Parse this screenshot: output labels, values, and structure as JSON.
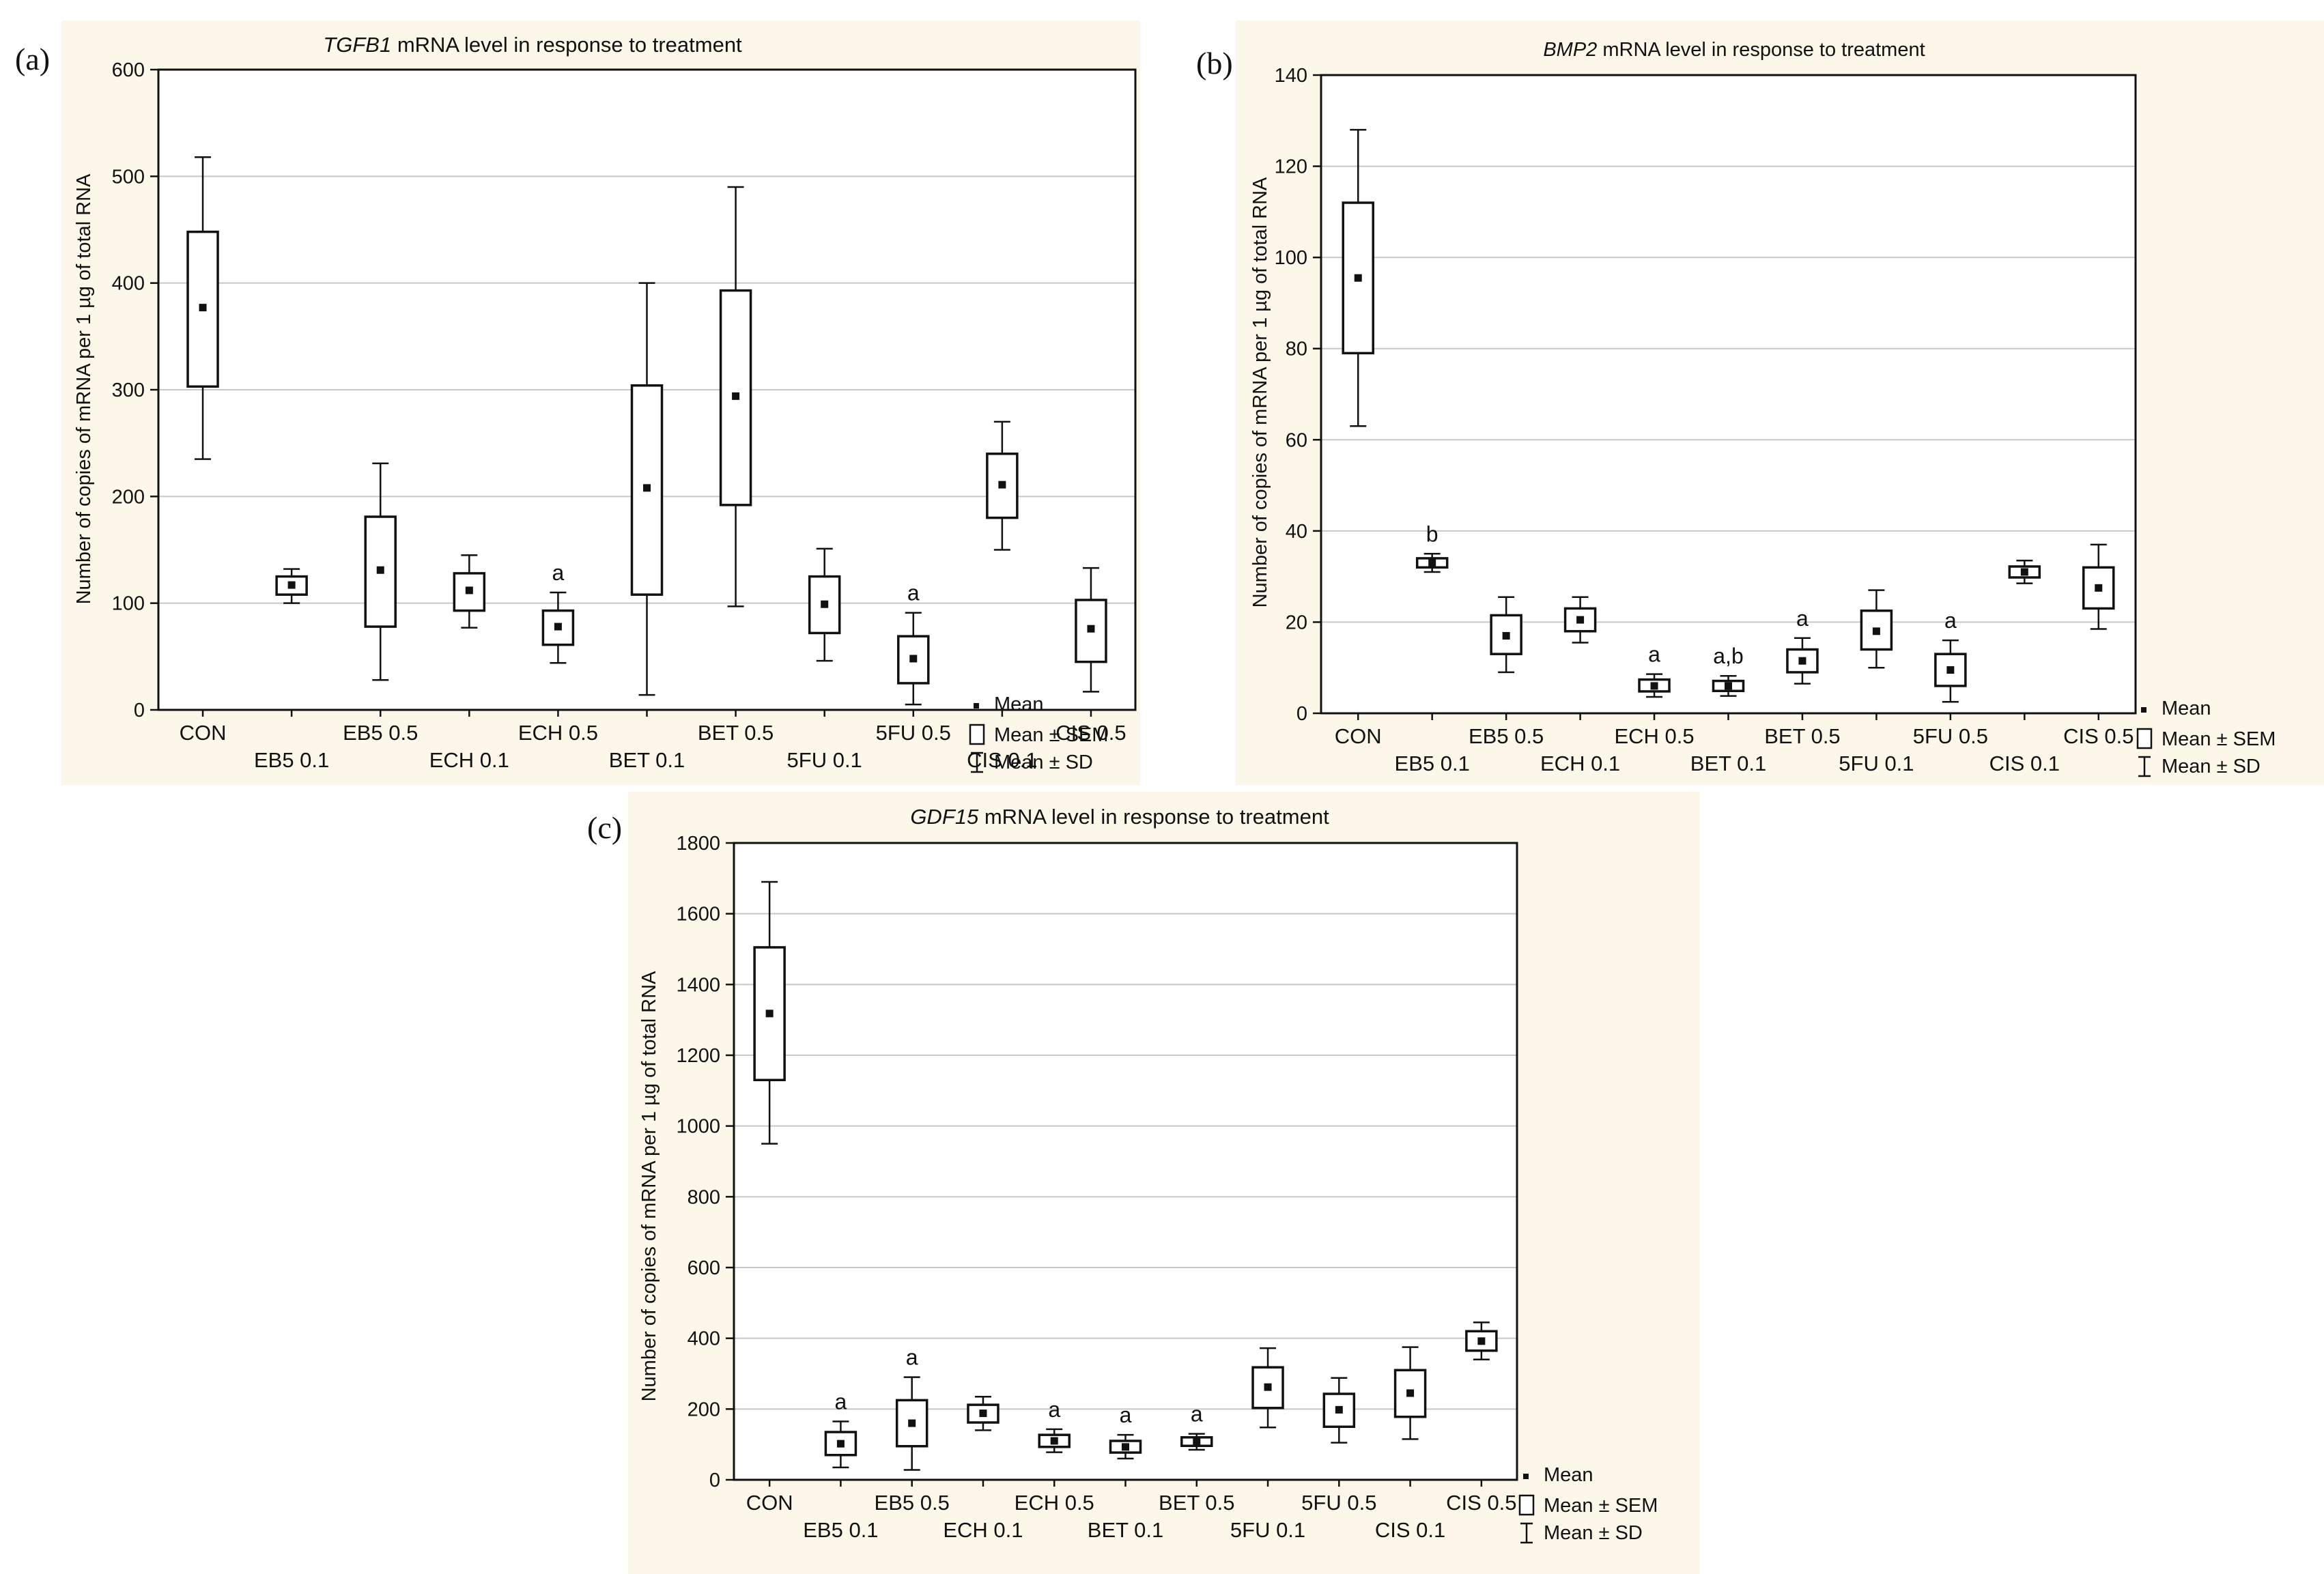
{
  "colors": {
    "panel_bg": "#fdf7ea",
    "plot_bg": "#ffffff",
    "grid": "#c8c8c8",
    "ink": "#111111"
  },
  "legend": {
    "mean": "Mean",
    "sem": "Mean ± SEM",
    "sd": "Mean ± SD"
  },
  "chart_data": [
    {
      "panel_label": "(a)",
      "type": "box",
      "title_italic": "TGFB1",
      "title_rest": " mRNA level in response to treatment",
      "ylabel": "Number of copies of mRNA per 1 µg of total RNA",
      "ylim": [
        0,
        600
      ],
      "yticks": [
        0,
        100,
        200,
        300,
        400,
        500,
        600
      ],
      "categories": [
        "CON",
        "EB5 0.1",
        "EB5 0.5",
        "ECH 0.1",
        "ECH 0.5",
        "BET 0.1",
        "BET 0.5",
        "5FU 0.1",
        "5FU 0.5",
        "CIS 0.1",
        "CIS 0.5"
      ],
      "series": [
        {
          "name": "CON",
          "mean": 377,
          "sem": [
            303,
            448
          ],
          "sd": [
            235,
            518
          ],
          "annotation": ""
        },
        {
          "name": "EB5 0.1",
          "mean": 117,
          "sem": [
            108,
            125
          ],
          "sd": [
            100,
            132
          ],
          "annotation": ""
        },
        {
          "name": "EB5 0.5",
          "mean": 131,
          "sem": [
            78,
            181
          ],
          "sd": [
            28,
            231
          ],
          "annotation": ""
        },
        {
          "name": "ECH 0.1",
          "mean": 112,
          "sem": [
            93,
            128
          ],
          "sd": [
            77,
            145
          ],
          "annotation": ""
        },
        {
          "name": "ECH 0.5",
          "mean": 78,
          "sem": [
            61,
            93
          ],
          "sd": [
            44,
            110
          ],
          "annotation": "a"
        },
        {
          "name": "BET 0.1",
          "mean": 208,
          "sem": [
            108,
            304
          ],
          "sd": [
            14,
            400
          ],
          "annotation": ""
        },
        {
          "name": "BET 0.5",
          "mean": 294,
          "sem": [
            192,
            393
          ],
          "sd": [
            97,
            490
          ],
          "annotation": ""
        },
        {
          "name": "5FU 0.1",
          "mean": 99,
          "sem": [
            72,
            125
          ],
          "sd": [
            46,
            151
          ],
          "annotation": ""
        },
        {
          "name": "5FU 0.5",
          "mean": 48,
          "sem": [
            25,
            69
          ],
          "sd": [
            5,
            91
          ],
          "annotation": "a"
        },
        {
          "name": "CIS 0.1",
          "mean": 211,
          "sem": [
            180,
            240
          ],
          "sd": [
            150,
            270
          ],
          "annotation": ""
        },
        {
          "name": "CIS 0.5",
          "mean": 76,
          "sem": [
            45,
            103
          ],
          "sd": [
            17,
            133
          ],
          "annotation": ""
        }
      ]
    },
    {
      "panel_label": "(b)",
      "type": "box",
      "title_italic": "BMP2",
      "title_rest": " mRNA level in response to treatment",
      "ylabel": "Number of copies of mRNA per 1 µg of total RNA",
      "ylim": [
        0,
        140
      ],
      "yticks": [
        0,
        20,
        40,
        60,
        80,
        100,
        120,
        140
      ],
      "categories": [
        "CON",
        "EB5 0.1",
        "EB5 0.5",
        "ECH 0.1",
        "ECH 0.5",
        "BET 0.1",
        "BET 0.5",
        "5FU 0.1",
        "5FU 0.5",
        "CIS 0.1",
        "CIS 0.5"
      ],
      "series": [
        {
          "name": "CON",
          "mean": 95.5,
          "sem": [
            79,
            112
          ],
          "sd": [
            63,
            128
          ],
          "annotation": ""
        },
        {
          "name": "EB5 0.1",
          "mean": 33,
          "sem": [
            32,
            34
          ],
          "sd": [
            31,
            35
          ],
          "annotation": "b"
        },
        {
          "name": "EB5 0.5",
          "mean": 17,
          "sem": [
            13,
            21.5
          ],
          "sd": [
            9,
            25.5
          ],
          "annotation": ""
        },
        {
          "name": "ECH 0.1",
          "mean": 20.5,
          "sem": [
            18,
            23
          ],
          "sd": [
            15.5,
            25.5
          ],
          "annotation": ""
        },
        {
          "name": "ECH 0.5",
          "mean": 6,
          "sem": [
            4.8,
            7.4
          ],
          "sd": [
            3.6,
            8.6
          ],
          "annotation": "a"
        },
        {
          "name": "BET 0.1",
          "mean": 6,
          "sem": [
            4.9,
            7.1
          ],
          "sd": [
            3.8,
            8.2
          ],
          "annotation": "a,b"
        },
        {
          "name": "BET 0.5",
          "mean": 11.5,
          "sem": [
            9,
            14
          ],
          "sd": [
            6.5,
            16.5
          ],
          "annotation": "a"
        },
        {
          "name": "5FU 0.1",
          "mean": 18,
          "sem": [
            14,
            22.5
          ],
          "sd": [
            10,
            27
          ],
          "annotation": ""
        },
        {
          "name": "5FU 0.5",
          "mean": 9.5,
          "sem": [
            6,
            13
          ],
          "sd": [
            2.5,
            16
          ],
          "annotation": "a"
        },
        {
          "name": "CIS 0.1",
          "mean": 31,
          "sem": [
            29.8,
            32.2
          ],
          "sd": [
            28.5,
            33.5
          ],
          "annotation": ""
        },
        {
          "name": "CIS 0.5",
          "mean": 27.5,
          "sem": [
            23,
            32
          ],
          "sd": [
            18.5,
            37
          ],
          "annotation": ""
        }
      ]
    },
    {
      "panel_label": "(c)",
      "type": "box",
      "title_italic": "GDF15",
      "title_rest": " mRNA level in response to treatment",
      "ylabel": "Number of copies of mRNA per 1 µg of total RNA",
      "ylim": [
        0,
        1800
      ],
      "yticks": [
        0,
        200,
        400,
        600,
        800,
        1000,
        1200,
        1400,
        1600,
        1800
      ],
      "categories": [
        "CON",
        "EB5 0.1",
        "EB5 0.5",
        "ECH 0.1",
        "ECH 0.5",
        "BET 0.1",
        "BET 0.5",
        "5FU 0.1",
        "5FU 0.5",
        "CIS 0.1",
        "CIS 0.5"
      ],
      "series": [
        {
          "name": "CON",
          "mean": 1318,
          "sem": [
            1130,
            1505
          ],
          "sd": [
            950,
            1690
          ],
          "annotation": ""
        },
        {
          "name": "EB5 0.1",
          "mean": 102,
          "sem": [
            70,
            135
          ],
          "sd": [
            35,
            165
          ],
          "annotation": "a"
        },
        {
          "name": "EB5 0.5",
          "mean": 160,
          "sem": [
            95,
            225
          ],
          "sd": [
            28,
            290
          ],
          "annotation": "a"
        },
        {
          "name": "ECH 0.1",
          "mean": 188,
          "sem": [
            162,
            212
          ],
          "sd": [
            140,
            235
          ],
          "annotation": ""
        },
        {
          "name": "ECH 0.5",
          "mean": 110,
          "sem": [
            93,
            127
          ],
          "sd": [
            78,
            143
          ],
          "annotation": "a"
        },
        {
          "name": "BET 0.1",
          "mean": 93,
          "sem": [
            77,
            110
          ],
          "sd": [
            60,
            127
          ],
          "annotation": "a"
        },
        {
          "name": "BET 0.5",
          "mean": 108,
          "sem": [
            96,
            120
          ],
          "sd": [
            85,
            130
          ],
          "annotation": "a"
        },
        {
          "name": "5FU 0.1",
          "mean": 262,
          "sem": [
            203,
            318
          ],
          "sd": [
            148,
            372
          ],
          "annotation": ""
        },
        {
          "name": "5FU 0.5",
          "mean": 198,
          "sem": [
            150,
            243
          ],
          "sd": [
            105,
            288
          ],
          "annotation": ""
        },
        {
          "name": "CIS 0.1",
          "mean": 245,
          "sem": [
            178,
            310
          ],
          "sd": [
            115,
            375
          ],
          "annotation": ""
        },
        {
          "name": "CIS 0.5",
          "mean": 392,
          "sem": [
            365,
            420
          ],
          "sd": [
            340,
            445
          ],
          "annotation": ""
        }
      ]
    }
  ]
}
